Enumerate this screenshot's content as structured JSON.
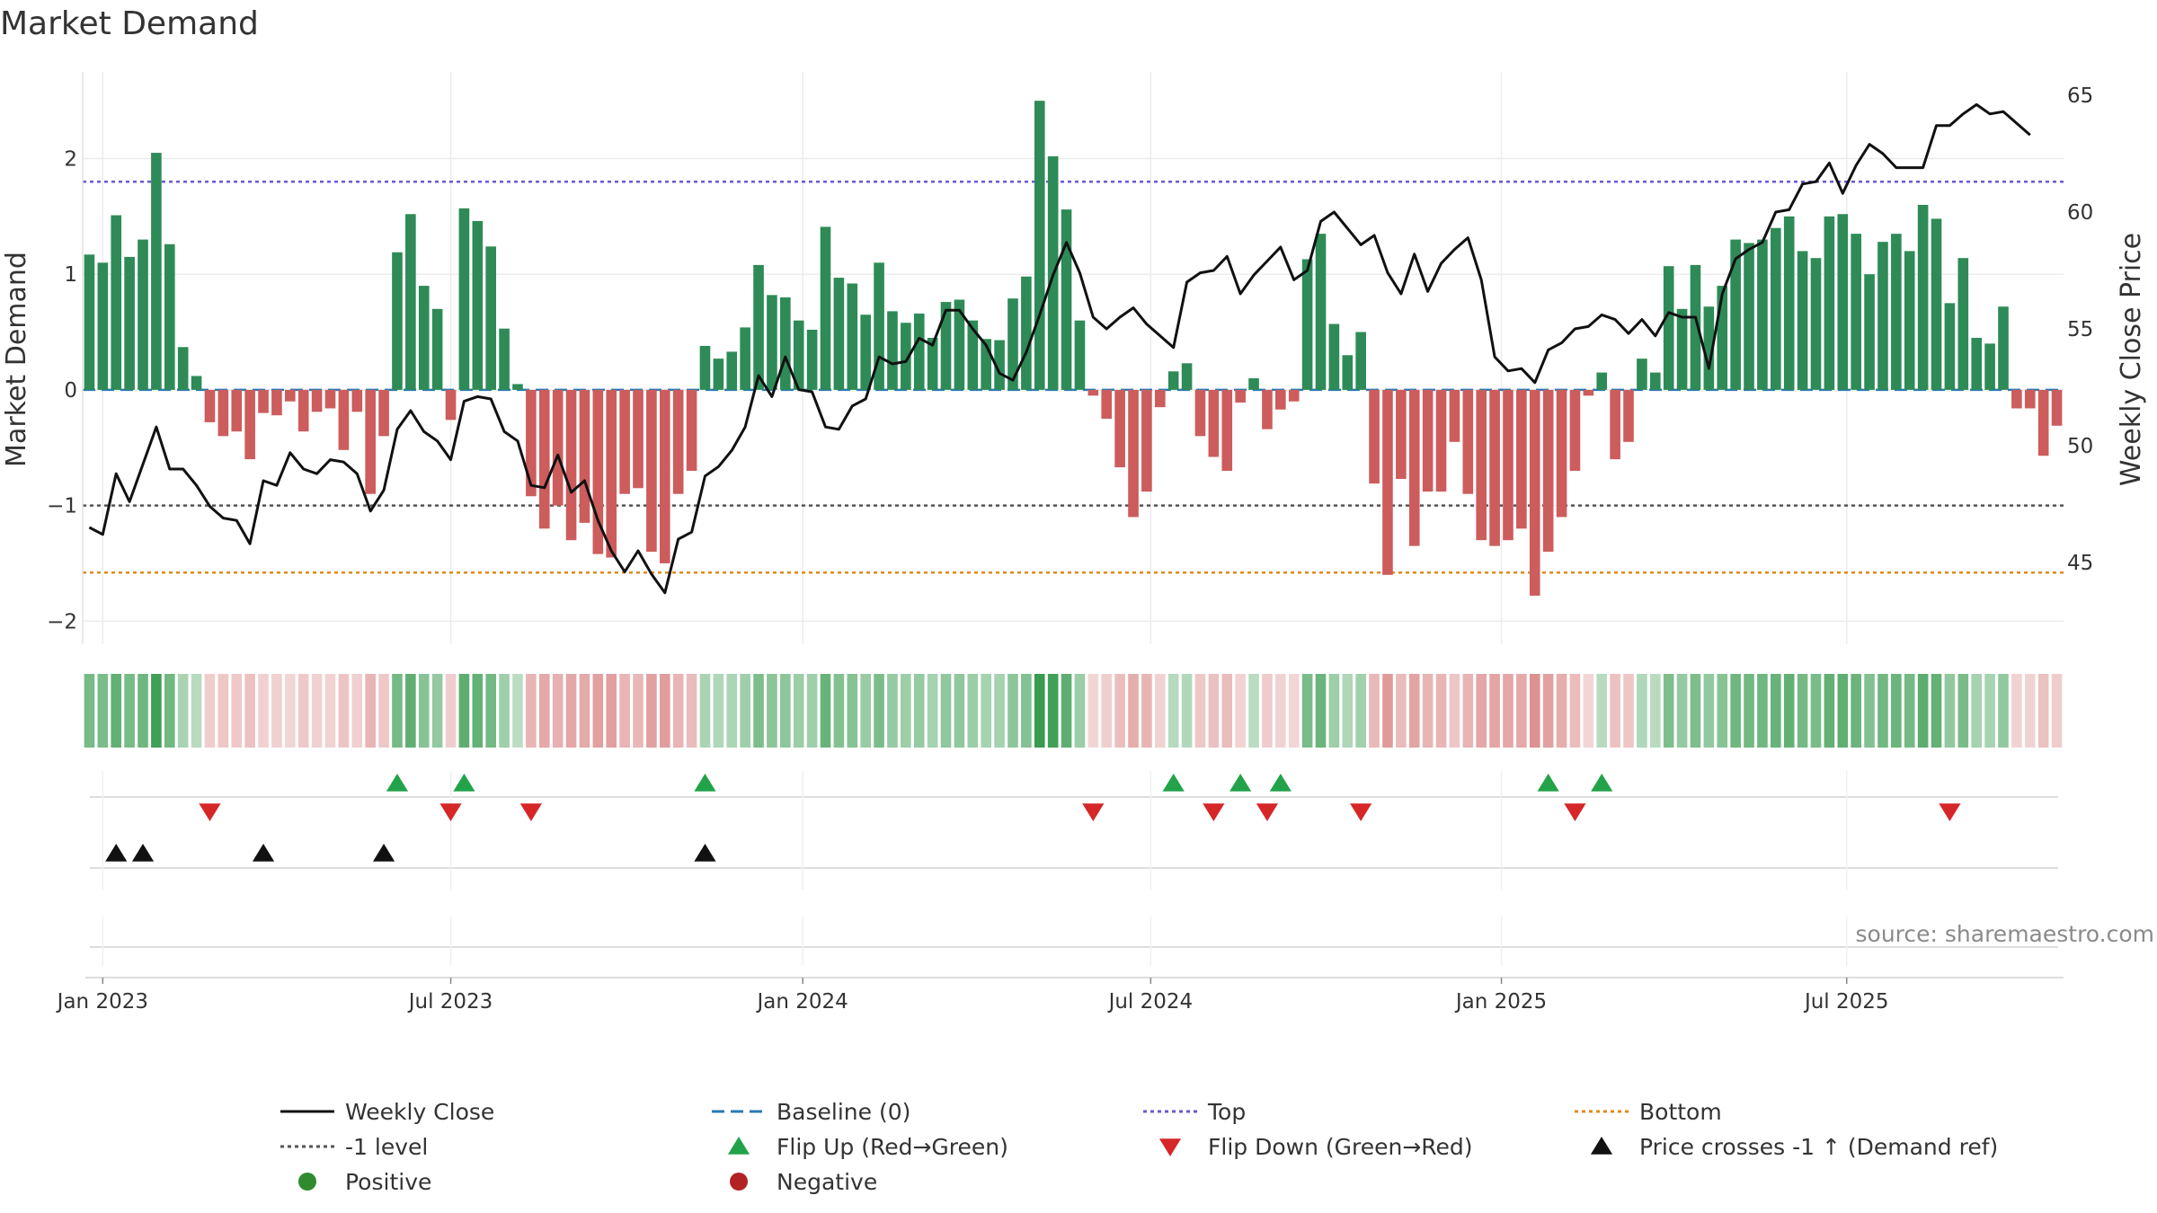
{
  "chart_data": {
    "type": "bar",
    "title": "Market Demand",
    "ylabel": "Market Demand",
    "y2label": "Weekly Close Price",
    "source": "source: sharemaestro.com",
    "ylim": [
      -2.2,
      2.75
    ],
    "y2lim": [
      41.5,
      66.0
    ],
    "yticks": [
      -2,
      -1,
      0,
      1,
      2
    ],
    "yticklabels": [
      "−2",
      "−1",
      "0",
      "1",
      "2"
    ],
    "y2ticks": [
      45,
      50,
      55,
      60,
      65
    ],
    "xticks": [
      {
        "label": "Jan 2023",
        "week": 1.5
      },
      {
        "label": "Jul 2023",
        "week": 27.5
      },
      {
        "label": "Jan 2024",
        "week": 53.8
      },
      {
        "label": "Jul 2024",
        "week": 79.8
      },
      {
        "label": "Jan 2025",
        "week": 106
      },
      {
        "label": "Jul 2025",
        "week": 131.8
      }
    ],
    "levels": {
      "baseline": 0,
      "top": 1.8,
      "minus1": -1,
      "bottom": -1.58
    },
    "demand": [
      1.17,
      1.1,
      1.51,
      1.15,
      1.3,
      2.05,
      1.26,
      0.37,
      0.12,
      -0.28,
      -0.4,
      -0.36,
      -0.6,
      -0.2,
      -0.22,
      -0.1,
      -0.36,
      -0.19,
      -0.16,
      -0.52,
      -0.19,
      -0.9,
      -0.4,
      1.19,
      1.52,
      0.9,
      0.7,
      -0.26,
      1.57,
      1.46,
      1.24,
      0.53,
      0.05,
      -0.92,
      -1.2,
      -1.0,
      -1.3,
      -1.15,
      -1.42,
      -1.45,
      -0.9,
      -0.85,
      -1.4,
      -1.5,
      -0.9,
      -0.7,
      0.38,
      0.27,
      0.33,
      0.54,
      1.08,
      0.82,
      0.8,
      0.6,
      0.52,
      1.41,
      0.97,
      0.92,
      0.65,
      1.1,
      0.68,
      0.58,
      0.66,
      0.45,
      0.76,
      0.78,
      0.6,
      0.44,
      0.43,
      0.79,
      0.98,
      2.5,
      2.02,
      1.56,
      0.6,
      -0.05,
      -0.25,
      -0.67,
      -1.1,
      -0.88,
      -0.15,
      0.16,
      0.23,
      -0.4,
      -0.58,
      -0.7,
      -0.11,
      0.1,
      -0.34,
      -0.17,
      -0.1,
      1.13,
      1.35,
      0.57,
      0.3,
      0.5,
      -0.81,
      -1.6,
      -0.77,
      -1.35,
      -0.88,
      -0.88,
      -0.45,
      -0.9,
      -1.3,
      -1.35,
      -1.3,
      -1.2,
      -1.78,
      -1.4,
      -1.1,
      -0.7,
      -0.05,
      0.15,
      -0.6,
      -0.45,
      0.27,
      0.15,
      1.07,
      0.7,
      1.08,
      0.72,
      0.9,
      1.3,
      1.27,
      1.3,
      1.4,
      1.5,
      1.2,
      1.14,
      1.5,
      1.52,
      1.35,
      1.0,
      1.28,
      1.35,
      1.2,
      1.6,
      1.48,
      0.75,
      1.14,
      0.45,
      0.4,
      0.72,
      -0.16,
      -0.16,
      -0.57,
      -0.31
    ],
    "close": [
      46.5,
      46.2,
      48.8,
      47.6,
      49.2,
      50.8,
      49.0,
      49.0,
      48.3,
      47.4,
      46.9,
      46.8,
      45.8,
      48.5,
      48.3,
      49.7,
      49.0,
      48.8,
      49.4,
      49.3,
      48.8,
      47.2,
      48.1,
      50.7,
      51.5,
      50.6,
      50.2,
      49.4,
      51.9,
      52.1,
      52.0,
      50.6,
      50.2,
      48.3,
      48.2,
      49.6,
      48.0,
      48.5,
      46.8,
      45.5,
      44.6,
      45.5,
      44.5,
      43.7,
      46.0,
      46.3,
      48.7,
      49.1,
      49.8,
      50.8,
      53.0,
      52.1,
      53.8,
      52.4,
      52.3,
      50.8,
      50.7,
      51.7,
      52.0,
      53.8,
      53.5,
      53.6,
      54.6,
      54.3,
      55.8,
      55.8,
      55.0,
      54.3,
      53.1,
      52.8,
      54.0,
      55.6,
      57.3,
      58.7,
      57.4,
      55.5,
      55.0,
      55.5,
      55.9,
      55.2,
      54.7,
      54.2,
      57.0,
      57.4,
      57.5,
      58.1,
      56.5,
      57.3,
      57.9,
      58.5,
      57.1,
      57.5,
      59.6,
      60.0,
      59.3,
      58.6,
      59.0,
      57.4,
      56.5,
      58.2,
      56.6,
      57.8,
      58.4,
      58.9,
      57.1,
      53.8,
      53.2,
      53.3,
      52.7,
      54.1,
      54.4,
      55.0,
      55.1,
      55.6,
      55.4,
      54.8,
      55.4,
      54.7,
      55.7,
      55.5,
      55.5,
      53.3,
      56.5,
      58.0,
      58.4,
      58.7,
      60.0,
      60.1,
      61.2,
      61.3,
      62.1,
      60.8,
      62.0,
      62.9,
      62.5,
      61.9,
      61.9,
      61.9,
      63.7,
      63.7,
      64.2,
      64.6,
      64.2,
      64.3,
      63.8,
      63.3
    ],
    "flip_up_weeks": [
      23,
      28,
      46,
      81,
      86,
      89,
      109,
      113
    ],
    "flip_down_weeks": [
      9,
      27,
      33,
      75,
      84,
      88,
      95,
      111,
      139
    ],
    "price_cross_weeks": [
      2,
      4,
      13,
      22,
      46
    ],
    "legend": [
      {
        "label": "Weekly Close",
        "style": "line",
        "color": "#111111"
      },
      {
        "label": "Baseline (0)",
        "style": "dash",
        "color": "#2a7ab5"
      },
      {
        "label": "Top",
        "style": "dot",
        "color": "#6a5acd"
      },
      {
        "label": "Bottom",
        "style": "dot",
        "color": "#e08a1e"
      },
      {
        "label": "-1 level",
        "style": "dot",
        "color": "#555555"
      },
      {
        "label": "Flip Up (Red→Green)",
        "style": "tri-up",
        "color": "#22a34a"
      },
      {
        "label": "Flip Down (Green→Red)",
        "style": "tri-down",
        "color": "#d62728"
      },
      {
        "label": "Price crosses -1 ↑ (Demand ref)",
        "style": "tri-up",
        "color": "#111111"
      },
      {
        "label": "Positive",
        "style": "circle",
        "color": "#2e8b2e"
      },
      {
        "label": "Negative",
        "style": "circle",
        "color": "#b22222"
      }
    ],
    "colors": {
      "positive": "#2e8b57",
      "negative": "#cd5c5c",
      "close": "#111111",
      "grid": "#ececec"
    }
  }
}
